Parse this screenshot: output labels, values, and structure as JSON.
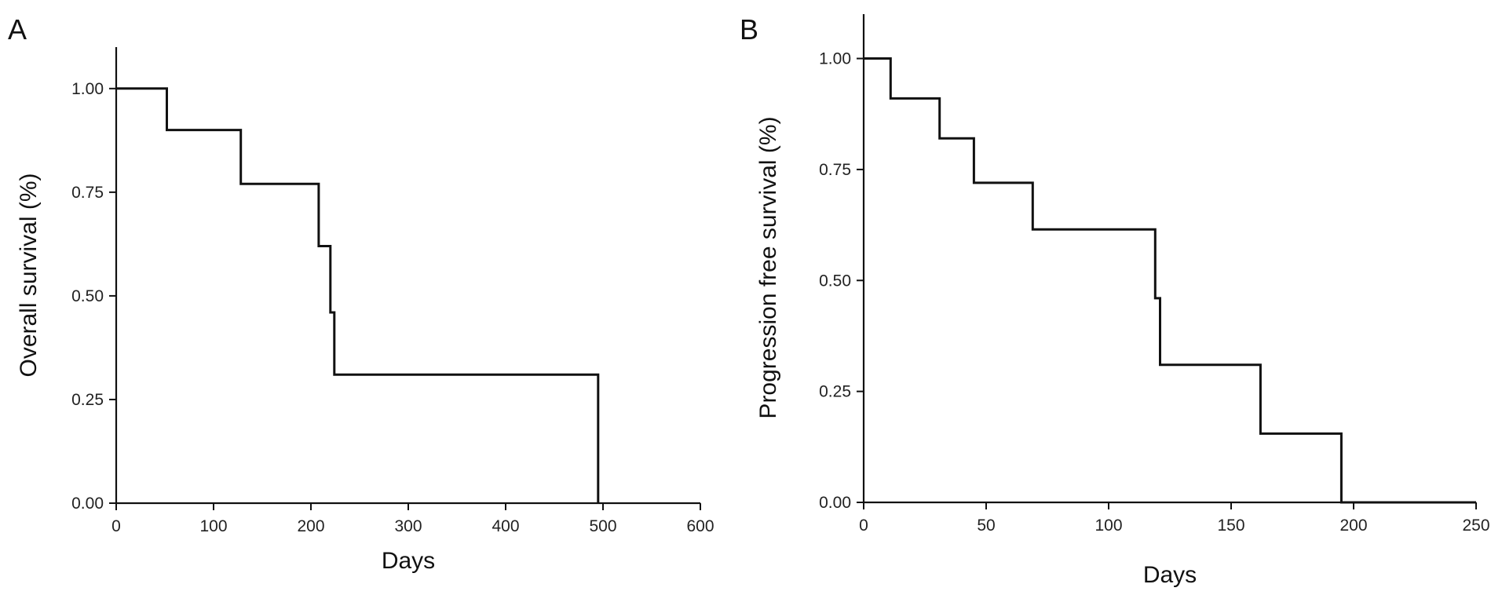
{
  "chart_data": [
    {
      "type": "line",
      "panel_label": "A",
      "title": "",
      "xlabel": "Days",
      "ylabel": "Overall survival (%)",
      "xlim": [
        0,
        600
      ],
      "ylim": [
        0,
        1.1
      ],
      "x_ticks": [
        "0",
        "100",
        "200",
        "300",
        "400",
        "500",
        "600"
      ],
      "y_ticks": [
        "0.00",
        "0.25",
        "0.50",
        "0.75",
        "1.00"
      ],
      "grid": false,
      "legend": "none",
      "step": true,
      "series": [
        {
          "x": [
            0,
            52,
            52,
            128,
            128,
            208,
            208,
            220,
            220,
            224,
            224,
            495,
            495
          ],
          "y": [
            1.0,
            1.0,
            0.9,
            0.9,
            0.77,
            0.77,
            0.62,
            0.62,
            0.46,
            0.46,
            0.31,
            0.31,
            0.0
          ]
        }
      ]
    },
    {
      "type": "line",
      "panel_label": "B",
      "title": "",
      "xlabel": "Days",
      "ylabel": "Progression free survival (%)",
      "xlim": [
        0,
        250
      ],
      "ylim": [
        0,
        1.1
      ],
      "x_ticks": [
        "0",
        "50",
        "100",
        "150",
        "200",
        "250"
      ],
      "y_ticks": [
        "0.00",
        "0.25",
        "0.50",
        "0.75",
        "1.00"
      ],
      "grid": false,
      "legend": "none",
      "step": true,
      "series": [
        {
          "x": [
            0,
            11,
            11,
            31,
            31,
            45,
            45,
            69,
            69,
            119,
            119,
            121,
            121,
            162,
            162,
            195,
            195,
            250
          ],
          "y": [
            1.0,
            1.0,
            0.91,
            0.91,
            0.82,
            0.82,
            0.72,
            0.72,
            0.615,
            0.615,
            0.46,
            0.46,
            0.31,
            0.31,
            0.155,
            0.155,
            0.0,
            0.0
          ]
        }
      ]
    }
  ]
}
